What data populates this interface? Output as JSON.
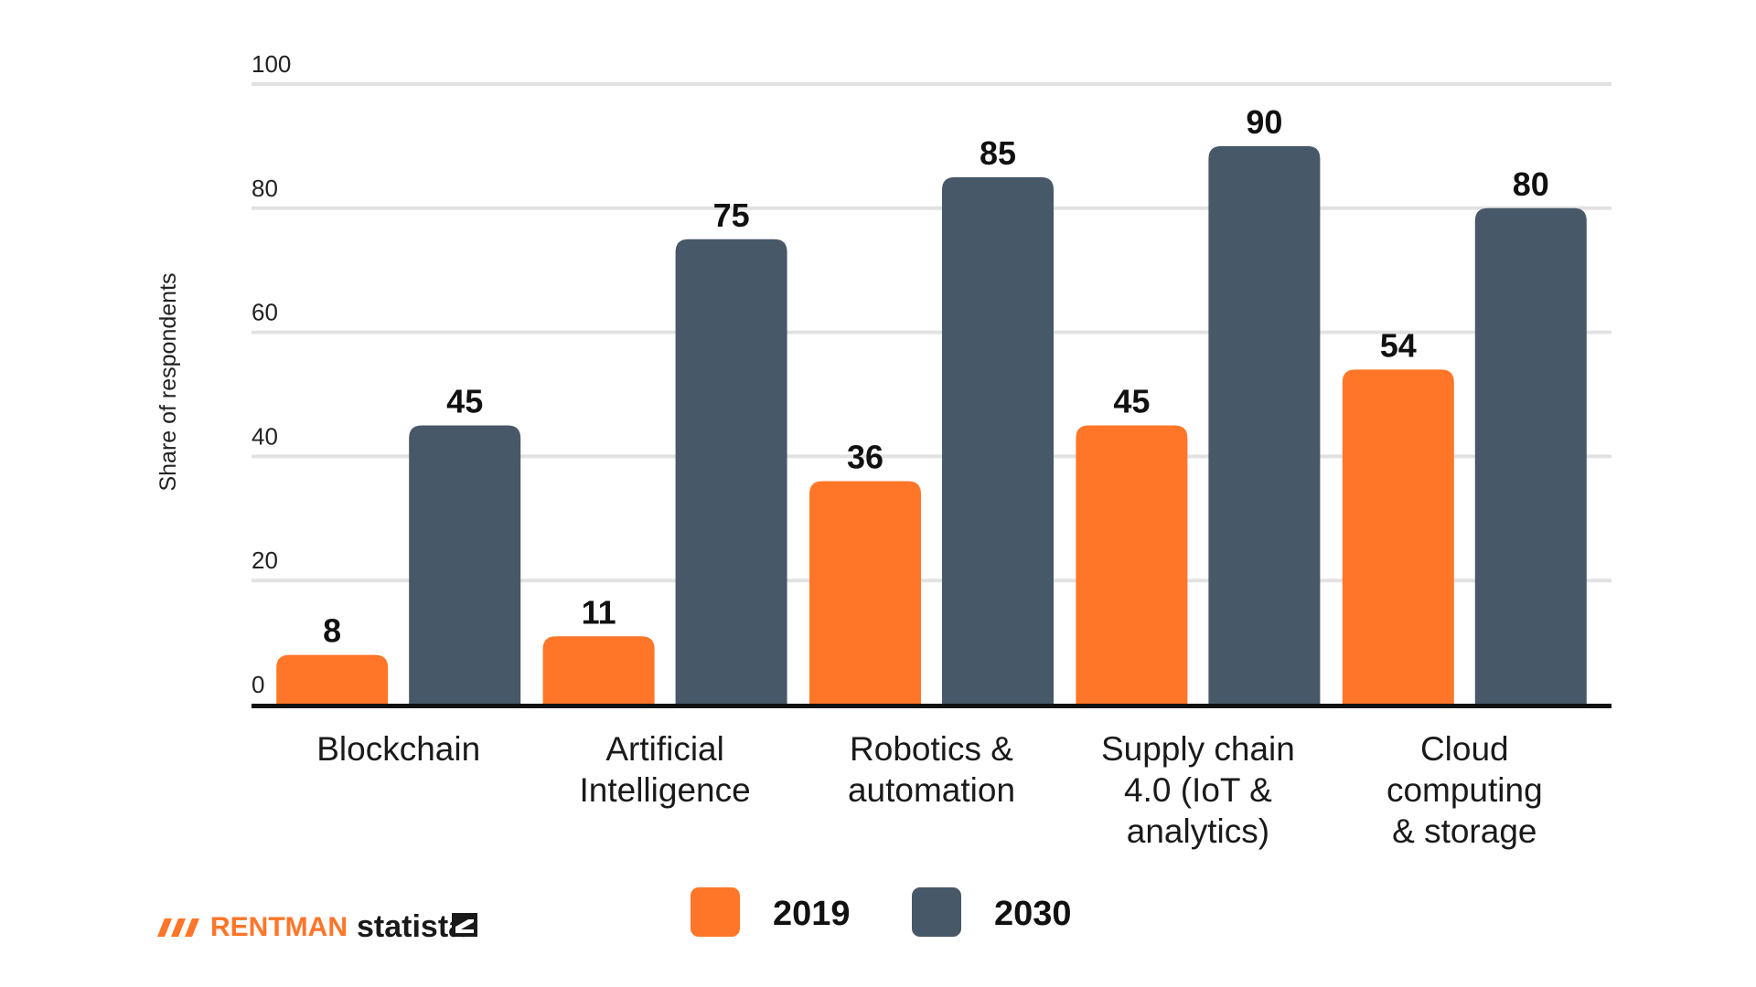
{
  "chart_data": {
    "type": "bar",
    "categories": [
      [
        "Blockchain"
      ],
      [
        "Artificial",
        "Intelligence"
      ],
      [
        "Robotics &",
        "automation"
      ],
      [
        "Supply chain",
        "4.0 (IoT &",
        "analytics)"
      ],
      [
        "Cloud",
        "computing",
        "& storage"
      ]
    ],
    "series": [
      {
        "name": "2019",
        "values": [
          8,
          11,
          36,
          45,
          54
        ]
      },
      {
        "name": "2030",
        "values": [
          45,
          75,
          85,
          90,
          80
        ]
      }
    ],
    "ylabel": "Share of respondents",
    "ylim": [
      0,
      100
    ],
    "yticks": [
      0,
      20,
      40,
      60,
      80,
      100
    ],
    "grid": true,
    "legend_position": "bottom",
    "colors": {
      "2019": "#ff7628",
      "2030": "#475868",
      "grid": "#e2e2e2",
      "axis": "#111111"
    }
  },
  "logos": {
    "rentman": "RENTMAN",
    "statista": "statista",
    "rentman_color": "#ff7628"
  }
}
